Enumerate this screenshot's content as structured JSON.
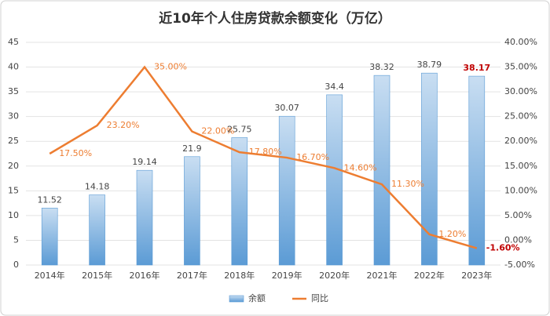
{
  "chart_data": {
    "type": "bar_line",
    "title": "近10年个人住房贷款余额变化（万亿）",
    "categories": [
      "2014年",
      "2015年",
      "2016年",
      "2017年",
      "2018年",
      "2019年",
      "2020年",
      "2021年",
      "2022年",
      "2023年"
    ],
    "series": [
      {
        "name": "余额",
        "type": "bar",
        "color": "#5b9bd5",
        "values": [
          11.52,
          14.18,
          19.14,
          21.9,
          25.75,
          30.07,
          34.4,
          38.32,
          38.79,
          38.17
        ]
      },
      {
        "name": "同比",
        "type": "line",
        "axis": "y2",
        "color": "#ed7d31",
        "values": [
          17.5,
          23.2,
          35.0,
          22.0,
          17.8,
          16.7,
          14.6,
          11.3,
          1.2,
          -1.6
        ],
        "value_labels": [
          "17.50%",
          "23.20%",
          "35.00%",
          "22.00%",
          "17.80%",
          "16.70%",
          "14.60%",
          "11.30%",
          "1.20%",
          "-1.60%"
        ]
      }
    ],
    "ylim": [
      0,
      45
    ],
    "yticks": [
      0,
      5,
      10,
      15,
      20,
      25,
      30,
      35,
      40,
      45
    ],
    "y2lim": [
      -5,
      40
    ],
    "y2ticks": [
      {
        "value": -5,
        "label": "-5.00%"
      },
      {
        "value": 0,
        "label": "0.00%"
      },
      {
        "value": 5,
        "label": "5.00%"
      },
      {
        "value": 10,
        "label": "10.00%"
      },
      {
        "value": 15,
        "label": "15.00%"
      },
      {
        "value": 20,
        "label": "20.00%"
      },
      {
        "value": 25,
        "label": "25.00%"
      },
      {
        "value": 30,
        "label": "30.00%"
      },
      {
        "value": 35,
        "label": "35.00%"
      },
      {
        "value": 40,
        "label": "40.00%"
      }
    ],
    "grid": true,
    "legend": "bottom",
    "highlight_color": "#c00000"
  }
}
